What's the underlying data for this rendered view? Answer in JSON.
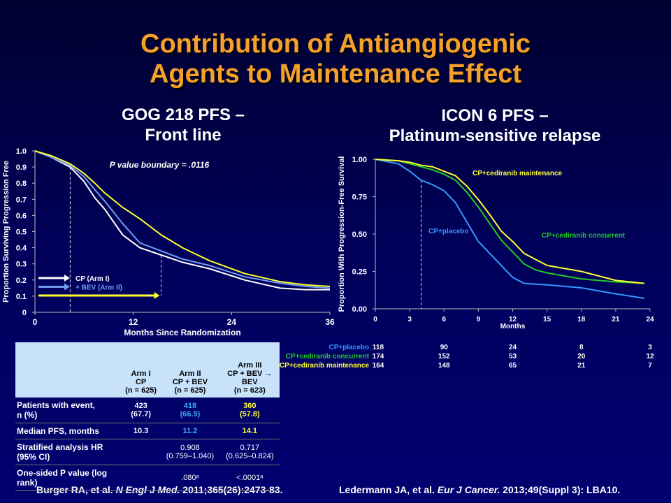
{
  "title": [
    "Contribution of Antiangiogenic",
    "Agents to Maintenance Effect"
  ],
  "chart_data": [
    {
      "type": "line",
      "title": [
        "GOG 218 PFS –",
        "Front line"
      ],
      "x_label": "Months Since Randomization",
      "y_label": "Proportion Surviving Progression Free",
      "annotation": "P value boundary = .0116",
      "xlim": [
        0,
        36
      ],
      "ylim": [
        0,
        1
      ],
      "xticks": [
        0,
        12,
        24,
        36
      ],
      "yticks": [
        0,
        0.1,
        0.2,
        0.3,
        0.4,
        0.5,
        0.6,
        0.7,
        0.8,
        0.9,
        {
          "value": 1,
          "label": "1.0"
        }
      ],
      "vlines": [
        4.3,
        15.4
      ],
      "legend": "bottom-left",
      "x": [
        0,
        2,
        4.3,
        6,
        7.3,
        8.5,
        10.7,
        12.8,
        15.4,
        18,
        21.3,
        25.6,
        29.9,
        33,
        36
      ],
      "series": [
        {
          "name": "CP (Arm I)",
          "color": "#ffffff",
          "values": [
            1,
            0.96,
            0.9,
            0.81,
            0.71,
            0.64,
            0.48,
            0.4,
            0.355,
            0.31,
            0.27,
            0.2,
            0.15,
            0.14,
            0.14
          ]
        },
        {
          "name": "+ BEV (Arm II)",
          "color": "#6f9cf0",
          "values": [
            1,
            0.96,
            0.91,
            0.84,
            0.76,
            0.69,
            0.55,
            0.43,
            0.38,
            0.33,
            0.29,
            0.22,
            0.18,
            0.16,
            0.15
          ]
        },
        {
          "color": "#ffff33",
          "values": [
            1,
            0.97,
            0.92,
            0.86,
            0.8,
            0.74,
            0.65,
            0.58,
            0.48,
            0.4,
            0.32,
            0.24,
            0.19,
            0.17,
            0.16
          ]
        }
      ]
    },
    {
      "type": "line",
      "title": [
        "ICON 6 PFS –",
        "Platinum-sensitive relapse"
      ],
      "x_label": "Months",
      "y_label": "Proportion With Progression-Free  Survival",
      "xlim": [
        0,
        24
      ],
      "ylim": [
        0,
        1
      ],
      "xticks": [
        0,
        3,
        6,
        9,
        12,
        15,
        18,
        21,
        24
      ],
      "yticks": [
        {
          "value": 0,
          "label": "0.00"
        },
        {
          "value": 0.25,
          "label": "0.25"
        },
        {
          "value": 0.5,
          "label": "0.50"
        },
        {
          "value": 0.75,
          "label": "0.75"
        },
        {
          "value": 1,
          "label": "1.00"
        }
      ],
      "vlines": [
        4
      ],
      "x": [
        0,
        2,
        3,
        4,
        5,
        6,
        7,
        8,
        9,
        10,
        11,
        12,
        13,
        14,
        15,
        18,
        21,
        23.5
      ],
      "at_risk_months": [
        0,
        6,
        12,
        18,
        24
      ],
      "series": [
        {
          "name": "CP+placebo",
          "color": "#3399ff",
          "values": [
            1,
            0.97,
            0.92,
            0.86,
            0.83,
            0.79,
            0.71,
            0.58,
            0.45,
            0.37,
            0.29,
            0.21,
            0.17,
            0.165,
            0.16,
            0.14,
            0.1,
            0.07
          ],
          "at_risk": [
            118,
            90,
            24,
            8,
            3
          ]
        },
        {
          "name": "CP+cediranib concurrent",
          "color": "#22cc22",
          "values": [
            1,
            0.99,
            0.97,
            0.95,
            0.93,
            0.9,
            0.86,
            0.78,
            0.68,
            0.57,
            0.46,
            0.38,
            0.3,
            0.26,
            0.24,
            0.2,
            0.18,
            0.17
          ],
          "at_risk": [
            174,
            152,
            53,
            20,
            12
          ]
        },
        {
          "name": "CP+cediranib maintenance",
          "color": "#ffff33",
          "values": [
            1,
            0.99,
            0.98,
            0.96,
            0.95,
            0.92,
            0.89,
            0.82,
            0.73,
            0.63,
            0.52,
            0.45,
            0.37,
            0.33,
            0.29,
            0.25,
            0.19,
            0.17
          ],
          "at_risk": [
            164,
            148,
            65,
            21,
            7
          ]
        }
      ]
    }
  ],
  "table": {
    "header": [
      [
        "Arm I",
        "CP",
        "(n = 625)"
      ],
      [
        "Arm II",
        "CP + BEV",
        "(n = 625)"
      ],
      [
        "Arm III",
        "CP + BEV →",
        "BEV",
        "(n = 623)"
      ]
    ],
    "rows": [
      {
        "label": "Patients with event,\n n (%)",
        "cells": [
          "423\n(67.7)",
          "418\n(66.9)",
          "360\n(57.8)"
        ]
      },
      {
        "label": "Median PFS, months",
        "cells": [
          "10.3",
          "11.2",
          "14.1"
        ]
      },
      {
        "label": "Stratified analysis HR (95%  CI)",
        "cells": [
          null,
          "0.908\n(0.759–1.040)",
          "0.717\n(0.625–0.824)"
        ]
      },
      {
        "label": "One-sided P value (log rank)",
        "cells": [
          null,
          ".080ᵃ",
          "<.0001ᵃ"
        ]
      }
    ]
  },
  "citations": [
    [
      "Burger RA, et al. ",
      "N Engl J Med.",
      " 2011;365(26):2473-83."
    ],
    [
      "Ledermann JA, et al. ",
      "Eur J Cancer.",
      " 2013;49(Suppl 3): LBA10."
    ]
  ]
}
